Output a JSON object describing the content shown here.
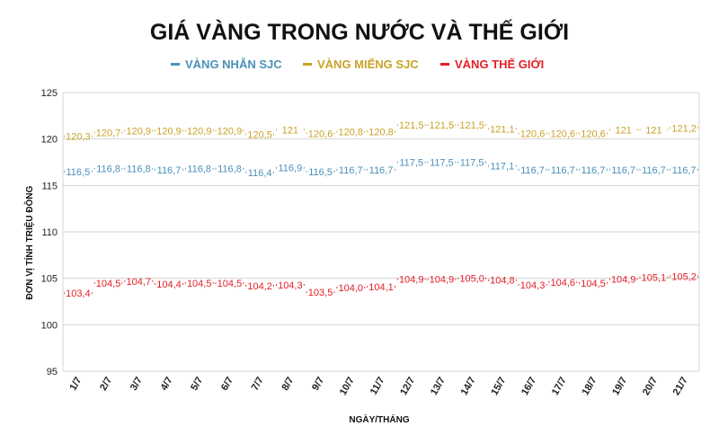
{
  "chart_data": {
    "type": "line",
    "title": "GIÁ VÀNG TRONG NƯỚC VÀ THẾ GIỚI",
    "xlabel": "NGÀY/THÁNG",
    "ylabel": "ĐƠN VỊ TÍNH TRIỆU ĐỒNG",
    "ylim": [
      95,
      125
    ],
    "yticks": [
      "95",
      "100",
      "105",
      "110",
      "115",
      "120",
      "125"
    ],
    "grid": true,
    "legend_position": "top-center",
    "categories": [
      "1/7",
      "2/7",
      "3/7",
      "4/7",
      "5/7",
      "6/7",
      "7/7",
      "8/7",
      "9/7",
      "10/7",
      "11/7",
      "12/7",
      "13/7",
      "14/7",
      "15/7",
      "16/7",
      "17/7",
      "18/7",
      "19/7",
      "20/7",
      "21/7"
    ],
    "series": [
      {
        "name": "VÀNG NHẪN SJC",
        "color": "#4a90b8",
        "values": [
          116.5,
          116.8,
          116.8,
          116.7,
          116.8,
          116.8,
          116.4,
          116.9,
          116.5,
          116.7,
          116.7,
          117.5,
          117.5,
          117.5,
          117.1,
          116.7,
          116.7,
          116.7,
          116.7,
          116.7,
          116.7
        ],
        "labels": [
          "116,5",
          "116,8",
          "116,8",
          "116,7",
          "116,8",
          "116,8",
          "116,4",
          "116,9",
          "116,5",
          "116,7",
          "116,7",
          "117,5",
          "117,5",
          "117,5",
          "117,1",
          "116,7",
          "116,7",
          "116,7",
          "116,7",
          "116,7",
          "116,7"
        ]
      },
      {
        "name": "VÀNG MIẾNG SJC",
        "color": "#c9a227",
        "values": [
          120.3,
          120.7,
          120.9,
          120.9,
          120.9,
          120.9,
          120.5,
          121,
          120.6,
          120.8,
          120.8,
          121.5,
          121.5,
          121.5,
          121.1,
          120.6,
          120.6,
          120.6,
          121,
          121,
          121.2
        ],
        "labels": [
          "120,3",
          "120,7",
          "120,9",
          "120,9",
          "120,9",
          "120,9",
          "120,5",
          "121",
          "120,6",
          "120,8",
          "120,8",
          "121,5",
          "121,5",
          "121,5",
          "121,1",
          "120,6",
          "120,6",
          "120,6",
          "121",
          "121",
          "121,2"
        ]
      },
      {
        "name": "VÀNG THẾ GIỚI",
        "color": "#e41e26",
        "values": [
          103.4,
          104.5,
          104.7,
          104.4,
          104.5,
          104.5,
          104.2,
          104.3,
          103.5,
          104.0,
          104.1,
          104.9,
          104.9,
          105.0,
          104.8,
          104.3,
          104.6,
          104.5,
          104.9,
          105.1,
          105.2
        ],
        "labels": [
          "103,4",
          "104,5",
          "104,7",
          "104,4",
          "104,5",
          "104,5",
          "104,2",
          "104,3",
          "103,5",
          "104,0",
          "104,1",
          "104,9",
          "104,9",
          "105,0",
          "104,8",
          "104,3",
          "104,6",
          "104,5",
          "104,9",
          "105,1",
          "105,2"
        ]
      }
    ]
  }
}
